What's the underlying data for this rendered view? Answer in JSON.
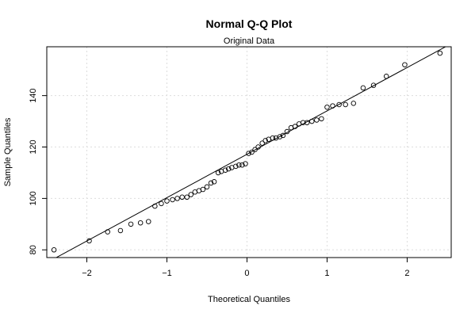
{
  "chart_data": {
    "type": "scatter",
    "title": "Normal Q-Q Plot",
    "subtitle": "Original Data",
    "xlabel": "Theoretical Quantiles",
    "ylabel": "Sample Quantiles",
    "xlim": [
      -2.5,
      2.55
    ],
    "ylim": [
      77,
      159
    ],
    "x_ticks": [
      -2,
      -1,
      0,
      1,
      2
    ],
    "y_ticks": [
      80,
      100,
      120,
      140
    ],
    "x_tick_labels": [
      "−2",
      "−1",
      "0",
      "1",
      "2"
    ],
    "y_tick_labels": [
      "80",
      "100",
      "120",
      "140"
    ],
    "grid": true,
    "reference_line": {
      "x": [
        -2.5,
        2.55
      ],
      "y": [
        75.0,
        160.2
      ]
    },
    "points": {
      "x": [
        -2.41,
        -1.97,
        -1.74,
        -1.58,
        -1.45,
        -1.33,
        -1.23,
        -1.15,
        -1.07,
        -1.0,
        -0.93,
        -0.87,
        -0.81,
        -0.75,
        -0.7,
        -0.65,
        -0.6,
        -0.55,
        -0.5,
        -0.45,
        -0.41,
        -0.36,
        -0.32,
        -0.27,
        -0.23,
        -0.19,
        -0.14,
        -0.1,
        -0.06,
        -0.02,
        0.02,
        0.06,
        0.1,
        0.14,
        0.19,
        0.23,
        0.27,
        0.32,
        0.36,
        0.41,
        0.45,
        0.5,
        0.55,
        0.6,
        0.65,
        0.7,
        0.75,
        0.81,
        0.87,
        0.93,
        1.0,
        1.07,
        1.15,
        1.23,
        1.33,
        1.45,
        1.58,
        1.74,
        1.97,
        2.41
      ],
      "y": [
        80.0,
        83.5,
        87.0,
        87.5,
        90.0,
        90.5,
        91.0,
        97.0,
        98.0,
        99.0,
        99.5,
        100.0,
        100.5,
        100.5,
        101.5,
        102.5,
        103.0,
        103.5,
        104.5,
        106.0,
        106.5,
        110.0,
        110.5,
        111.0,
        111.5,
        112.0,
        112.5,
        113.0,
        113.0,
        113.5,
        117.5,
        118.0,
        119.0,
        120.0,
        121.5,
        122.5,
        123.0,
        123.5,
        123.5,
        124.0,
        124.5,
        126.0,
        127.5,
        128.0,
        129.0,
        129.5,
        129.5,
        130.0,
        130.5,
        131.0,
        135.5,
        136.0,
        136.5,
        136.5,
        137.0,
        143.0,
        144.0,
        147.5,
        152.0,
        156.5
      ]
    }
  }
}
